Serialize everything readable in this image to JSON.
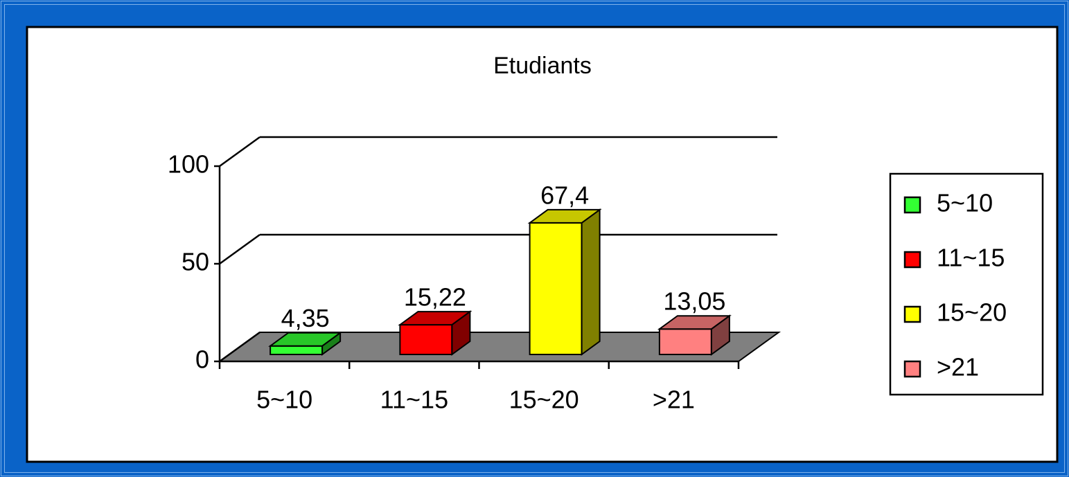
{
  "chart_data": {
    "type": "bar3d",
    "title": "Etudiants",
    "categories": [
      "5~10",
      "11~15",
      "15~20",
      ">21"
    ],
    "values": [
      4.35,
      15.22,
      67.4,
      13.05
    ],
    "value_labels": [
      "4,35",
      "15,22",
      "67,4",
      "13,05"
    ],
    "colors": [
      "#33ff33",
      "#ff0000",
      "#ffff00",
      "#ff8080"
    ],
    "ylim": [
      0,
      100
    ],
    "yticks": [
      0,
      50,
      100
    ],
    "grid": true,
    "legend": "right"
  }
}
